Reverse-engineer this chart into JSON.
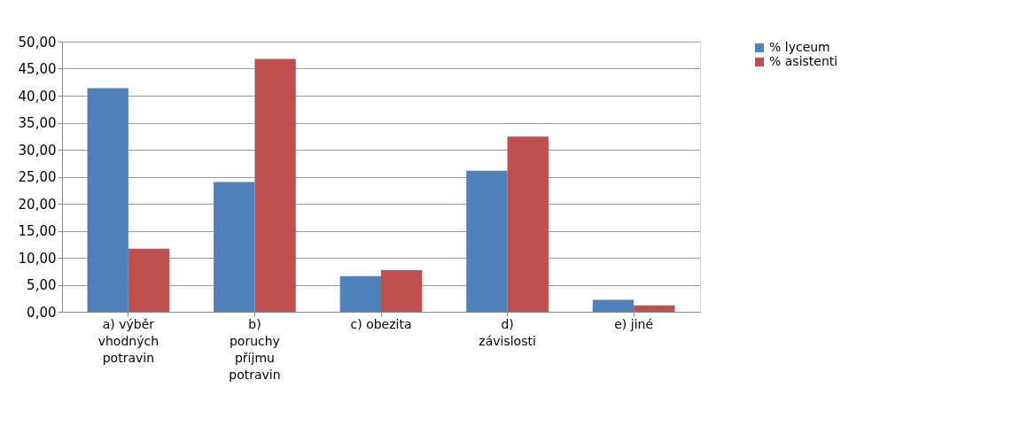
{
  "chart_data": {
    "type": "bar",
    "categories": [
      "a) výběr\nvhodných\npotravin",
      "b)\nporuchy\npříjmu\npotravin",
      "c) obezita",
      "d)\nzávislosti",
      "e) jiné"
    ],
    "series": [
      {
        "name": "% lyceum",
        "color": "#4f81bd",
        "values": [
          41.4,
          24.0,
          6.6,
          26.1,
          2.2
        ]
      },
      {
        "name": "% asistenti",
        "color": "#c0504d",
        "values": [
          11.7,
          46.8,
          7.7,
          32.4,
          1.2
        ]
      }
    ],
    "ylim": [
      0,
      50
    ],
    "yticks": [
      {
        "value": 0,
        "label": "0,00"
      },
      {
        "value": 5,
        "label": "5,00"
      },
      {
        "value": 10,
        "label": "10,00"
      },
      {
        "value": 15,
        "label": "15,00"
      },
      {
        "value": 20,
        "label": "20,00"
      },
      {
        "value": 25,
        "label": "25,00"
      },
      {
        "value": 30,
        "label": "30,00"
      },
      {
        "value": 35,
        "label": "35,00"
      },
      {
        "value": 40,
        "label": "40,00"
      },
      {
        "value": 45,
        "label": "45,00"
      },
      {
        "value": 50,
        "label": "50,00"
      }
    ],
    "grid": "y",
    "legend": "right"
  }
}
